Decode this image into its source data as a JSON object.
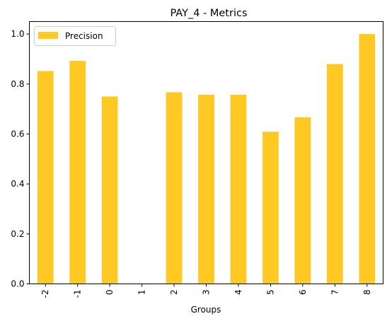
{
  "chart_data": {
    "type": "bar",
    "title": "PAY_4 - Metrics",
    "xlabel": "Groups",
    "ylabel": "",
    "categories": [
      "-2",
      "-1",
      "0",
      "1",
      "2",
      "3",
      "4",
      "5",
      "6",
      "7",
      "8"
    ],
    "series": [
      {
        "name": "Precision",
        "color": "#ffc823",
        "values": [
          0.852,
          0.893,
          0.75,
          0.0,
          0.767,
          0.757,
          0.757,
          0.609,
          0.667,
          0.88,
          1.0
        ]
      }
    ],
    "ylim": [
      0,
      1.05
    ],
    "yticks": [
      "0.0",
      "0.2",
      "0.4",
      "0.6",
      "0.8",
      "1.0"
    ],
    "grid": false,
    "legend_position": "upper-left"
  }
}
